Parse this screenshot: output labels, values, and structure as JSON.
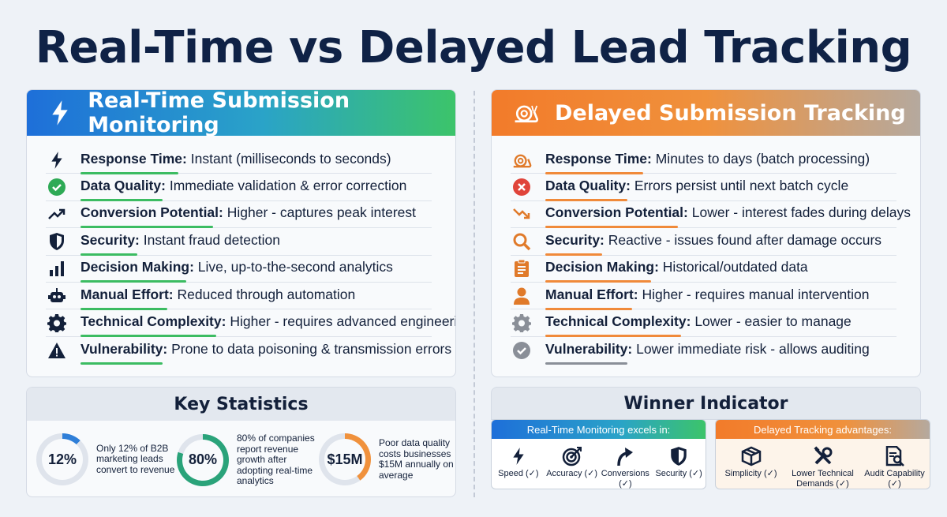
{
  "title": "Real-Time vs Delayed Lead Tracking",
  "left": {
    "heading": "Real-Time Submission Monitoring",
    "rows": [
      {
        "label": "Response Time:",
        "text": "Instant (milliseconds to seconds)",
        "icon": "bolt-icon"
      },
      {
        "label": "Data Quality:",
        "text": "Immediate validation & error correction",
        "icon": "check-circle-icon"
      },
      {
        "label": "Conversion Potential:",
        "text": "Higher - captures peak interest",
        "icon": "trend-up-icon"
      },
      {
        "label": "Security:",
        "text": "Instant fraud detection",
        "icon": "shield-icon"
      },
      {
        "label": "Decision Making:",
        "text": "Live, up-to-the-second analytics",
        "icon": "bar-chart-icon"
      },
      {
        "label": "Manual Effort:",
        "text": "Reduced through automation",
        "icon": "robot-icon"
      },
      {
        "label": "Technical Complexity:",
        "text": "Higher - requires advanced engineering",
        "icon": "gear-icon"
      },
      {
        "label": "Vulnerability:",
        "text": "Prone to data poisoning & transmission errors",
        "icon": "warning-icon"
      }
    ]
  },
  "right": {
    "heading": "Delayed Submission Tracking",
    "rows": [
      {
        "label": "Response Time:",
        "text": "Minutes to days (batch processing)",
        "icon": "snail-icon"
      },
      {
        "label": "Data Quality:",
        "text": "Errors persist until next batch cycle",
        "icon": "x-circle-icon"
      },
      {
        "label": "Conversion Potential:",
        "text": "Lower - interest fades during delays",
        "icon": "trend-down-icon"
      },
      {
        "label": "Security:",
        "text": "Reactive - issues found after damage occurs",
        "icon": "magnifier-icon"
      },
      {
        "label": "Decision Making:",
        "text": "Historical/outdated data",
        "icon": "clipboard-icon"
      },
      {
        "label": "Manual Effort:",
        "text": "Higher - requires manual intervention",
        "icon": "person-icon"
      },
      {
        "label": "Technical Complexity:",
        "text": "Lower - easier to manage",
        "icon": "gear-icon"
      },
      {
        "label": "Vulnerability:",
        "text": "Lower immediate risk - allows auditing",
        "icon": "check-circle-icon"
      }
    ]
  },
  "stats": {
    "heading": "Key Statistics",
    "items": [
      {
        "value": "12%",
        "text": "Only 12% of B2B marketing leads convert to revenue",
        "percent": 12,
        "color": "#2f7fd8"
      },
      {
        "value": "80%",
        "text": "80% of companies report revenue growth after adopting real-time analytics",
        "percent": 80,
        "color": "#2aa37a"
      },
      {
        "value": "$15M",
        "text": "Poor data quality costs businesses $15M annually on average",
        "percent": 40,
        "color": "#f0913c"
      }
    ]
  },
  "winner": {
    "heading": "Winner Indicator",
    "left_heading": "Real-Time Monitoring excels in:",
    "right_heading": "Delayed Tracking advantages:",
    "left_items": [
      {
        "label": "Speed (✓)",
        "icon": "bolt-icon"
      },
      {
        "label": "Accuracy (✓)",
        "icon": "target-icon"
      },
      {
        "label": "Conversions (✓)",
        "icon": "arrow-up-icon"
      },
      {
        "label": "Security (✓)",
        "icon": "shield-icon"
      }
    ],
    "right_items": [
      {
        "label": "Simplicity (✓)",
        "icon": "box-icon"
      },
      {
        "label": "Lower Technical Demands (✓)",
        "icon": "tools-icon"
      },
      {
        "label": "Audit Capability (✓)",
        "icon": "document-search-icon"
      }
    ]
  },
  "colors": {
    "navy": "#0f2246",
    "green": "#3cbc62",
    "orange": "#f08a3a",
    "blue": "#1e6fd9"
  }
}
